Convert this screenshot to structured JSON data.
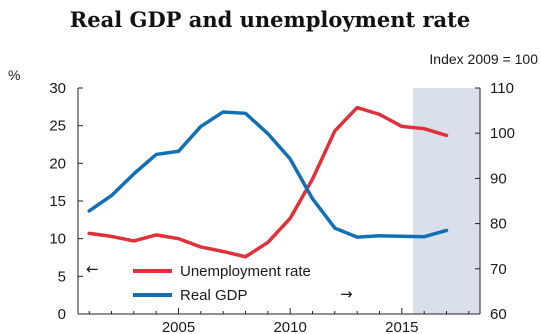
{
  "chart_data": {
    "type": "line",
    "title": "Real GDP and unemployment rate",
    "left_axis_unit": "%",
    "right_axis_unit": "Index 2009 = 100",
    "x_ticks": [
      2005,
      2010,
      2015
    ],
    "left_ticks": [
      0,
      5,
      10,
      15,
      20,
      25,
      30
    ],
    "right_ticks": [
      60,
      70,
      80,
      90,
      100,
      110
    ],
    "xlim": [
      2000.5,
      2018.5
    ],
    "left_ylim": [
      0,
      30
    ],
    "right_ylim": [
      60,
      110
    ],
    "shaded_region": [
      2015.5,
      2018.5
    ],
    "colors": {
      "unemployment": "#e0303a",
      "gdp": "#1170b4",
      "shade": "#d9e0ec"
    },
    "series": [
      {
        "name": "Unemployment rate",
        "axis": "left",
        "x": [
          2001,
          2002,
          2003,
          2004,
          2005,
          2006,
          2007,
          2008,
          2009,
          2010,
          2011,
          2012,
          2013,
          2014,
          2015,
          2016,
          2017,
          2018
        ],
        "values": [
          10.7,
          10.3,
          9.7,
          10.5,
          10.0,
          8.9,
          8.3,
          7.6,
          9.5,
          12.7,
          17.9,
          24.3,
          27.4,
          26.5,
          24.9,
          24.6,
          23.7,
          null
        ]
      },
      {
        "name": "Real GDP",
        "axis": "right",
        "x": [
          2001,
          2002,
          2003,
          2004,
          2005,
          2006,
          2007,
          2008,
          2009,
          2010,
          2011,
          2012,
          2013,
          2014,
          2015,
          2016,
          2017,
          2018
        ],
        "values": [
          82.8,
          86.2,
          91.0,
          95.3,
          96.0,
          101.5,
          104.7,
          104.4,
          99.9,
          94.3,
          85.5,
          79.0,
          77.0,
          77.3,
          77.2,
          77.1,
          78.5,
          null
        ]
      }
    ],
    "legend": {
      "items": [
        "Unemployment rate",
        "Real GDP"
      ],
      "left_arrow": "←",
      "right_arrow": "→"
    }
  }
}
